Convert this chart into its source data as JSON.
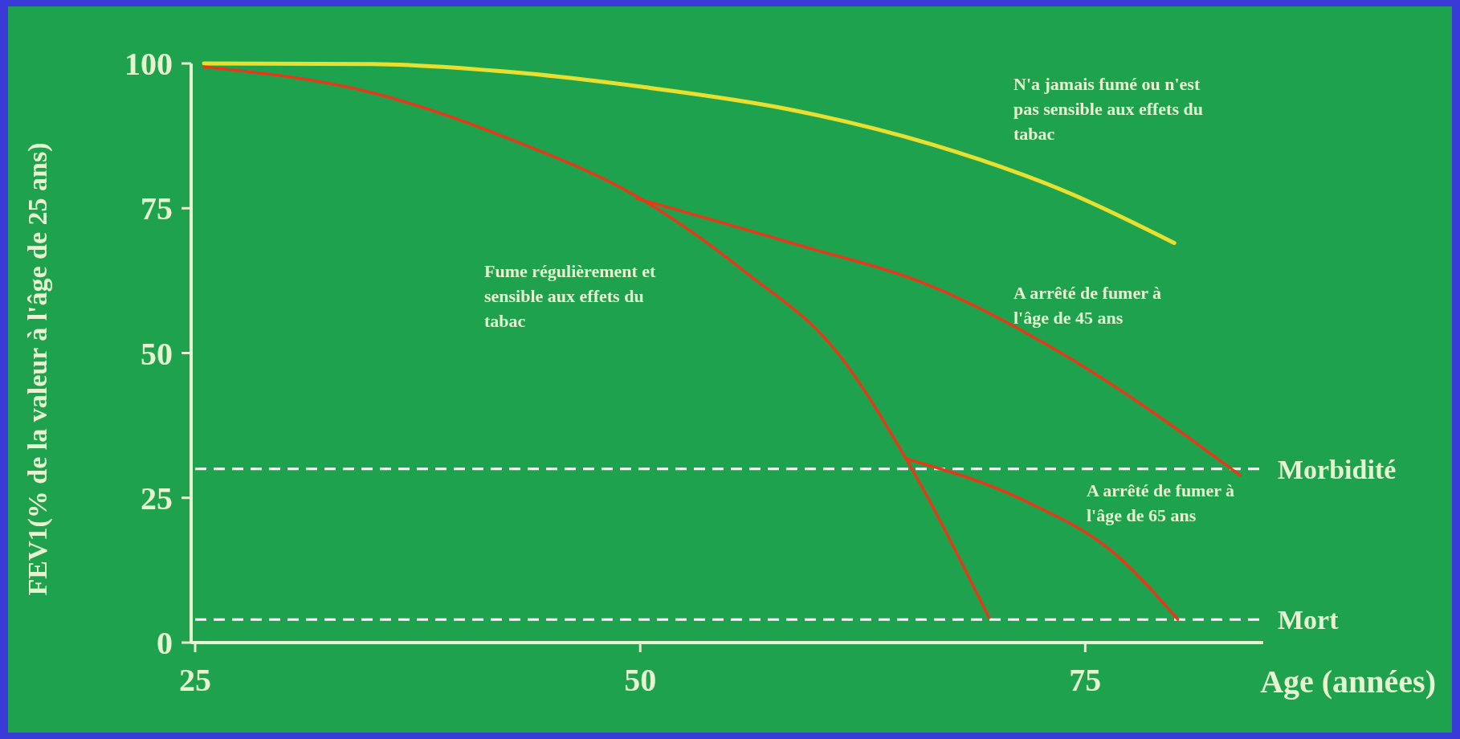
{
  "chart_data": {
    "type": "line",
    "xlabel": "Age (années)",
    "ylabel": "FEV1(% de la valeur à l'âge de 25 ans)",
    "xlim": [
      25,
      85
    ],
    "ylim": [
      0,
      100
    ],
    "xticks": [
      25,
      50,
      75
    ],
    "yticks": [
      0,
      25,
      50,
      75,
      100
    ],
    "grid": false,
    "marker": "none",
    "line_style": "solid",
    "series": [
      {
        "name": "N'a jamais fumé ou n'est pas sensible aux effets du tabac",
        "color": "#e8e030",
        "x": [
          25.5,
          35,
          42.8,
          50,
          58.5,
          66.4,
          74.2,
          80
        ],
        "values": [
          100,
          99.9,
          98.5,
          96,
          92,
          86,
          77.5,
          69
        ]
      },
      {
        "name": "Fume régulièrement et sensible aux effets du tabac",
        "color": "#e8381a",
        "x": [
          25.5,
          35,
          42.8,
          50,
          55.9,
          61.1,
          65,
          69.6
        ],
        "values": [
          99.4,
          94.9,
          86.8,
          76.7,
          64,
          50,
          31.4,
          4.3
        ]
      },
      {
        "name": "A arrêté de fumer à l'âge de 45 ans",
        "color": "#e8381a",
        "x": [
          49.8,
          58.5,
          66.4,
          74.2,
          83.7
        ],
        "values": [
          76.7,
          69,
          61.5,
          49,
          28.9
        ]
      },
      {
        "name": "A arrêté de fumer à l'âge de 65 ans",
        "color": "#e8381a",
        "x": [
          65,
          71.6,
          76.8,
          80.2
        ],
        "values": [
          31.7,
          24.5,
          15,
          4
        ]
      }
    ],
    "ref_lines": [
      {
        "axis": "y",
        "value": 30,
        "label": "Morbidité",
        "color": "#ffffff",
        "line_style": "dashed"
      },
      {
        "axis": "y",
        "value": 4,
        "label": "Mort",
        "color": "#ffffff",
        "line_style": "dashed"
      }
    ]
  }
}
